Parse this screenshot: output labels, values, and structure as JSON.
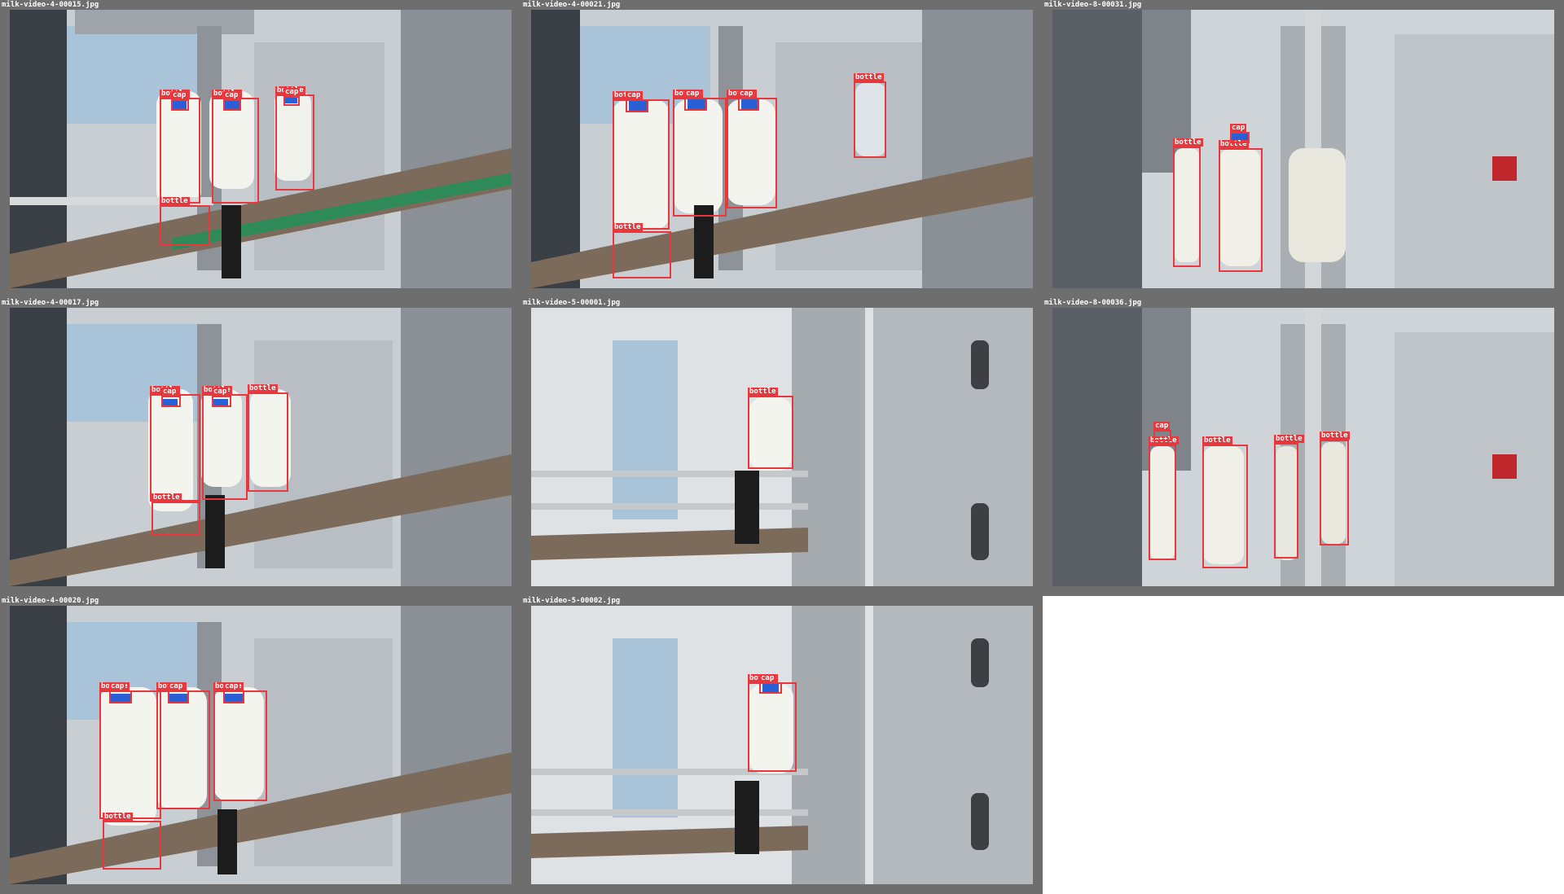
{
  "tiles": [
    {
      "filename": "milk-video-4-00015.jpg",
      "labels": [
        "bottle",
        "cap",
        "bottle",
        "cap",
        "bottle",
        "cap",
        "bottle"
      ]
    },
    {
      "filename": "milk-video-4-00021.jpg",
      "labels": [
        "bottle",
        "cap",
        "bottle",
        "cap",
        "bottle",
        "cap",
        "bottle",
        "bottle"
      ]
    },
    {
      "filename": "milk-video-8-00031.jpg",
      "labels": [
        "bottle",
        "bottle",
        "cap"
      ]
    },
    {
      "filename": "milk-video-4-00017.jpg",
      "labels": [
        "bottle",
        "cap",
        "bottle",
        "cap",
        "bottle",
        "bottle"
      ]
    },
    {
      "filename": "milk-video-5-00001.jpg",
      "labels": [
        "bottle"
      ]
    },
    {
      "filename": "milk-video-8-00036.jpg",
      "labels": [
        "bottle",
        "cap",
        "bottle",
        "bottle",
        "bottle"
      ]
    },
    {
      "filename": "milk-video-4-00020.jpg",
      "labels": [
        "bottle",
        "cap",
        "bottle",
        "cap",
        "bottle",
        "cap",
        "bottle"
      ]
    },
    {
      "filename": "milk-video-5-00002.jpg",
      "labels": [
        "bottle",
        "cap"
      ]
    }
  ],
  "colors": {
    "box": "#e8383d",
    "frame": "#6e6e6e",
    "cap": "#2a5fd6"
  }
}
